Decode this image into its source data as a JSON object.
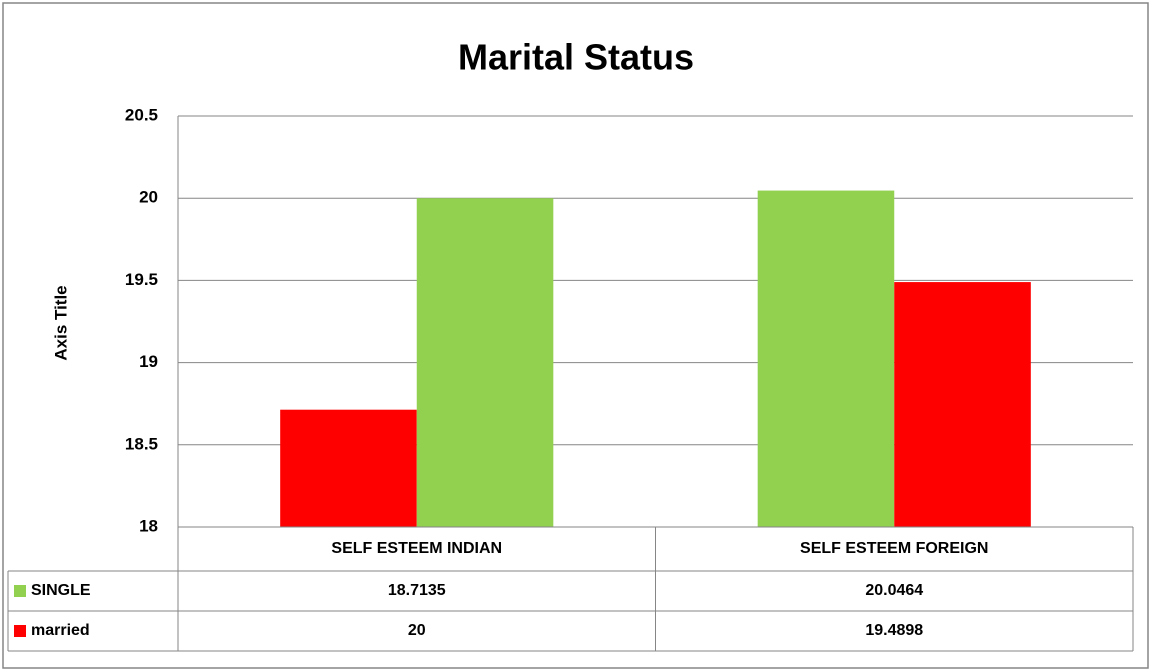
{
  "chart_data": {
    "type": "bar",
    "title": "Marital Status",
    "y_axis_label": "Axis Title",
    "categories": [
      "SELF ESTEEM INDIAN",
      "SELF ESTEEM FOREIGN"
    ],
    "series": [
      {
        "name": "SINGLE",
        "color": "#92d050",
        "colors": [
          "#ff0000",
          "#92d050"
        ],
        "values": [
          18.7135,
          20.0464
        ]
      },
      {
        "name": "married",
        "color": "#ff0000",
        "colors": [
          "#92d050",
          "#ff0000"
        ],
        "values": [
          20,
          19.4898
        ]
      }
    ],
    "ylim": [
      18,
      20.5
    ],
    "yticks": [
      18,
      18.5,
      19,
      19.5,
      20,
      20.5
    ],
    "grid": true,
    "data_table": true
  }
}
